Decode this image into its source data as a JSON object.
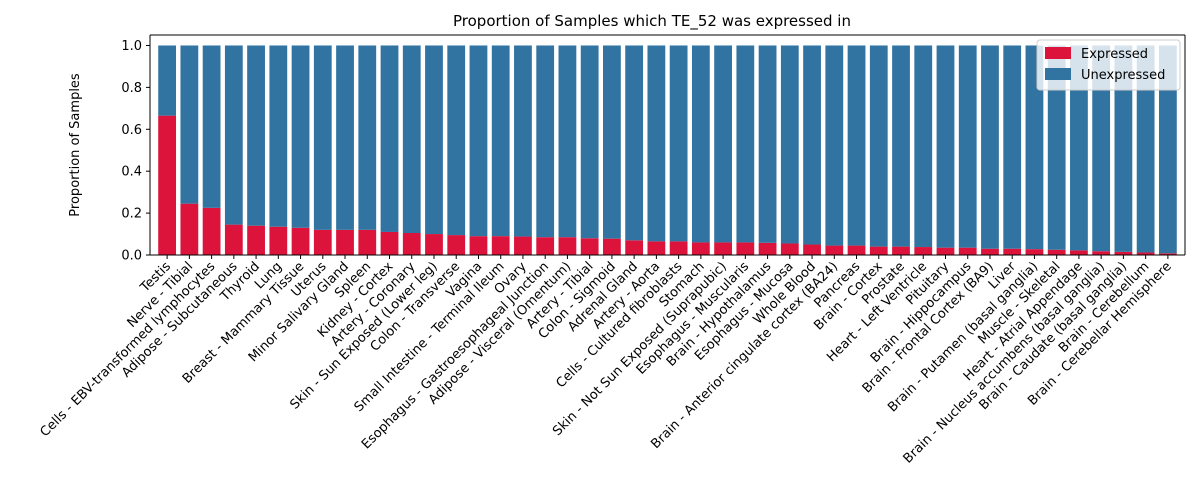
{
  "chart_data": {
    "type": "bar",
    "stacked": true,
    "title": "Proportion of Samples which TE_52 was expressed in",
    "xlabel": "",
    "ylabel": "Proportion of Samples",
    "ylim": [
      0,
      1.05
    ],
    "yticks": [
      "0.0",
      "0.2",
      "0.4",
      "0.6",
      "0.8",
      "1.0"
    ],
    "grid": false,
    "legend_position": "top-right",
    "categories": [
      "Testis",
      "Nerve - Tibial",
      "Cells - EBV-transformed lymphocytes",
      "Adipose - Subcutaneous",
      "Thyroid",
      "Lung",
      "Breast - Mammary Tissue",
      "Uterus",
      "Minor Salivary Gland",
      "Spleen",
      "Kidney - Cortex",
      "Artery - Coronary",
      "Skin - Sun Exposed (Lower leg)",
      "Colon - Transverse",
      "Vagina",
      "Small Intestine - Terminal Ileum",
      "Ovary",
      "Esophagus - Gastroesophageal Junction",
      "Adipose - Visceral (Omentum)",
      "Artery - Tibial",
      "Colon - Sigmoid",
      "Adrenal Gland",
      "Artery - Aorta",
      "Cells - Cultured fibroblasts",
      "Stomach",
      "Skin - Not Sun Exposed (Suprapubic)",
      "Esophagus - Muscularis",
      "Brain - Hypothalamus",
      "Esophagus - Mucosa",
      "Whole Blood",
      "Brain - Anterior cingulate cortex (BA24)",
      "Pancreas",
      "Brain - Cortex",
      "Prostate",
      "Heart - Left Ventricle",
      "Pituitary",
      "Brain - Hippocampus",
      "Brain - Frontal Cortex (BA9)",
      "Liver",
      "Brain - Putamen (basal ganglia)",
      "Muscle - Skeletal",
      "Heart - Atrial Appendage",
      "Brain - Nucleus accumbens (basal ganglia)",
      "Brain - Caudate (basal ganglia)",
      "Brain - Cerebellum",
      "Brain - Cerebellar Hemisphere"
    ],
    "series": [
      {
        "name": "Expressed",
        "color": "#dc143c",
        "values": [
          0.665,
          0.245,
          0.225,
          0.145,
          0.14,
          0.135,
          0.13,
          0.12,
          0.12,
          0.12,
          0.11,
          0.105,
          0.1,
          0.095,
          0.09,
          0.09,
          0.088,
          0.085,
          0.085,
          0.08,
          0.078,
          0.07,
          0.065,
          0.065,
          0.06,
          0.06,
          0.06,
          0.058,
          0.055,
          0.05,
          0.045,
          0.045,
          0.04,
          0.04,
          0.038,
          0.035,
          0.035,
          0.03,
          0.03,
          0.028,
          0.025,
          0.022,
          0.018,
          0.015,
          0.012,
          0.008
        ]
      },
      {
        "name": "Unexpressed",
        "color": "#3274a1",
        "values": [
          0.335,
          0.755,
          0.775,
          0.855,
          0.86,
          0.865,
          0.87,
          0.88,
          0.88,
          0.88,
          0.89,
          0.895,
          0.9,
          0.905,
          0.91,
          0.91,
          0.912,
          0.915,
          0.915,
          0.92,
          0.922,
          0.93,
          0.935,
          0.935,
          0.94,
          0.94,
          0.94,
          0.942,
          0.945,
          0.95,
          0.955,
          0.955,
          0.96,
          0.96,
          0.962,
          0.965,
          0.965,
          0.97,
          0.97,
          0.972,
          0.975,
          0.978,
          0.982,
          0.985,
          0.988,
          0.992
        ]
      }
    ]
  }
}
